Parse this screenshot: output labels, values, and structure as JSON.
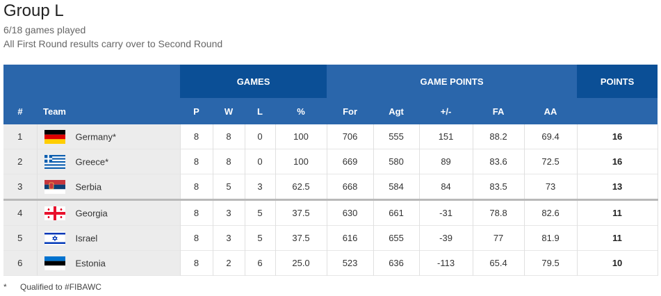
{
  "header": {
    "title": "Group L",
    "games_played": "6/18 games played",
    "note": "All First Round results carry over to Second Round"
  },
  "columns": {
    "group_games": "GAMES",
    "group_points": "GAME POINTS",
    "group_total": "POINTS",
    "rank": "#",
    "team": "Team",
    "p": "P",
    "w": "W",
    "l": "L",
    "pct": "%",
    "for": "For",
    "agt": "Agt",
    "diff": "+/-",
    "fa": "FA",
    "aa": "AA"
  },
  "rows": [
    {
      "rank": "1",
      "team": "Germany*",
      "flag": "germany-flag-icon",
      "p": "8",
      "w": "8",
      "l": "0",
      "pct": "100",
      "for": "706",
      "agt": "555",
      "diff": "151",
      "fa": "88.2",
      "aa": "69.4",
      "pts": "16"
    },
    {
      "rank": "2",
      "team": "Greece*",
      "flag": "greece-flag-icon",
      "p": "8",
      "w": "8",
      "l": "0",
      "pct": "100",
      "for": "669",
      "agt": "580",
      "diff": "89",
      "fa": "83.6",
      "aa": "72.5",
      "pts": "16"
    },
    {
      "rank": "3",
      "team": "Serbia",
      "flag": "serbia-flag-icon",
      "p": "8",
      "w": "5",
      "l": "3",
      "pct": "62.5",
      "for": "668",
      "agt": "584",
      "diff": "84",
      "fa": "83.5",
      "aa": "73",
      "pts": "13"
    },
    {
      "rank": "4",
      "team": "Georgia",
      "flag": "georgia-flag-icon",
      "p": "8",
      "w": "3",
      "l": "5",
      "pct": "37.5",
      "for": "630",
      "agt": "661",
      "diff": "-31",
      "fa": "78.8",
      "aa": "82.6",
      "pts": "11"
    },
    {
      "rank": "5",
      "team": "Israel",
      "flag": "israel-flag-icon",
      "p": "8",
      "w": "3",
      "l": "5",
      "pct": "37.5",
      "for": "616",
      "agt": "655",
      "diff": "-39",
      "fa": "77",
      "aa": "81.9",
      "pts": "11"
    },
    {
      "rank": "6",
      "team": "Estonia",
      "flag": "estonia-flag-icon",
      "p": "8",
      "w": "2",
      "l": "6",
      "pct": "25.0",
      "for": "523",
      "agt": "636",
      "diff": "-113",
      "fa": "65.4",
      "aa": "79.5",
      "pts": "10"
    }
  ],
  "footer": {
    "symbol": "*",
    "text": "Qualified to #FIBAWC"
  },
  "colors": {
    "header_light": "#2a66ab",
    "header_dark": "#0b4f96"
  }
}
